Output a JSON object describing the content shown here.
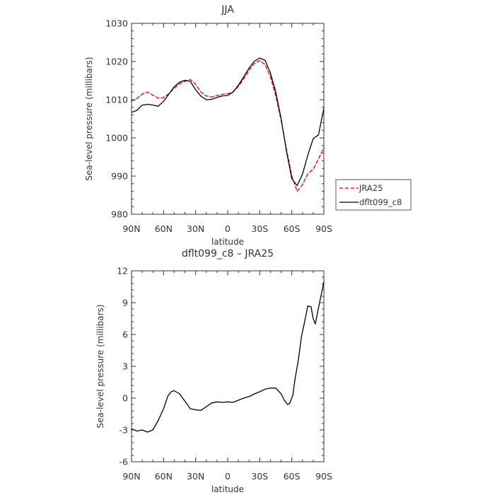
{
  "chart_data": [
    {
      "type": "line",
      "title": "JJA",
      "xlabel": "latitude",
      "ylabel": "Sea-level pressure (millibars)",
      "xlim": [
        90,
        -90
      ],
      "ylim": [
        980,
        1030
      ],
      "xtick_values": [
        90,
        60,
        30,
        0,
        -30,
        -60,
        -90
      ],
      "xtick_labels": [
        "90N",
        "60N",
        "30N",
        "0",
        "30S",
        "60S",
        "90S"
      ],
      "ytick_values": [
        980,
        990,
        1000,
        1010,
        1020,
        1030
      ],
      "ytick_labels": [
        "980",
        "990",
        "1000",
        "1010",
        "1020",
        "1030"
      ],
      "legend_position": "right",
      "series": [
        {
          "name": "JRA25",
          "color": "#e00000",
          "dash": "dashed",
          "points": [
            [
              90,
              1009.6
            ],
            [
              85,
              1010.3
            ],
            [
              80,
              1011.5
            ],
            [
              75,
              1012.0
            ],
            [
              70,
              1011.2
            ],
            [
              65,
              1010.4
            ],
            [
              60,
              1010.6
            ],
            [
              55,
              1011.6
            ],
            [
              50,
              1013.0
            ],
            [
              45,
              1014.2
            ],
            [
              40,
              1014.8
            ],
            [
              35,
              1015.3
            ],
            [
              30,
              1014.0
            ],
            [
              25,
              1012.0
            ],
            [
              20,
              1011.0
            ],
            [
              15,
              1010.7
            ],
            [
              10,
              1011.1
            ],
            [
              5,
              1011.4
            ],
            [
              0,
              1011.6
            ],
            [
              -5,
              1012.0
            ],
            [
              -10,
              1013.5
            ],
            [
              -15,
              1015.5
            ],
            [
              -20,
              1017.7
            ],
            [
              -25,
              1019.5
            ],
            [
              -30,
              1020.3
            ],
            [
              -35,
              1019.2
            ],
            [
              -40,
              1016.0
            ],
            [
              -45,
              1011.0
            ],
            [
              -50,
              1004.5
            ],
            [
              -55,
              997.0
            ],
            [
              -60,
              990.0
            ],
            [
              -65,
              986.0
            ],
            [
              -70,
              987.8
            ],
            [
              -75,
              990.6
            ],
            [
              -80,
              991.8
            ],
            [
              -85,
              994.5
            ],
            [
              -90,
              997.5
            ]
          ]
        },
        {
          "name": "dflt099_c8",
          "color": "#000000",
          "dash": "solid",
          "points": [
            [
              90,
              1006.7
            ],
            [
              85,
              1007.2
            ],
            [
              80,
              1008.6
            ],
            [
              75,
              1008.8
            ],
            [
              70,
              1008.6
            ],
            [
              65,
              1008.3
            ],
            [
              60,
              1009.6
            ],
            [
              55,
              1011.5
            ],
            [
              50,
              1013.4
            ],
            [
              45,
              1014.6
            ],
            [
              40,
              1015.1
            ],
            [
              35,
              1014.8
            ],
            [
              30,
              1012.6
            ],
            [
              25,
              1010.9
            ],
            [
              20,
              1010.0
            ],
            [
              15,
              1010.1
            ],
            [
              10,
              1010.6
            ],
            [
              5,
              1011.0
            ],
            [
              0,
              1011.1
            ],
            [
              -5,
              1012.0
            ],
            [
              -10,
              1013.8
            ],
            [
              -15,
              1016.0
            ],
            [
              -20,
              1018.3
            ],
            [
              -25,
              1020.1
            ],
            [
              -30,
              1020.9
            ],
            [
              -35,
              1020.3
            ],
            [
              -40,
              1017.0
            ],
            [
              -45,
              1012.0
            ],
            [
              -50,
              1005.0
            ],
            [
              -55,
              996.5
            ],
            [
              -60,
              989.3
            ],
            [
              -65,
              987.5
            ],
            [
              -70,
              990.5
            ],
            [
              -75,
              995.5
            ],
            [
              -80,
              999.8
            ],
            [
              -85,
              1000.8
            ],
            [
              -90,
              1007.8
            ]
          ]
        }
      ]
    },
    {
      "type": "line",
      "title": "dflt099_c8 – JRA25",
      "xlabel": "latitude",
      "ylabel": "Sea-level pressure (millibars)",
      "xlim": [
        90,
        -90
      ],
      "ylim": [
        -6,
        12
      ],
      "xtick_values": [
        90,
        60,
        30,
        0,
        -30,
        -60,
        -90
      ],
      "xtick_labels": [
        "90N",
        "60N",
        "30N",
        "0",
        "30S",
        "60S",
        "90S"
      ],
      "ytick_values": [
        -6,
        -3,
        0,
        3,
        6,
        9,
        12
      ],
      "ytick_labels": [
        "-6",
        "-3",
        "0",
        "3",
        "6",
        "9",
        "12"
      ],
      "series": [
        {
          "color": "#000000",
          "dash": "solid",
          "points": [
            [
              90,
              -2.9
            ],
            [
              85,
              -3.1
            ],
            [
              80,
              -3.0
            ],
            [
              75,
              -3.2
            ],
            [
              70,
              -3.0
            ],
            [
              65,
              -2.1
            ],
            [
              60,
              -1.0
            ],
            [
              56,
              0.2
            ],
            [
              53,
              0.6
            ],
            [
              50,
              0.7
            ],
            [
              45,
              0.4
            ],
            [
              40,
              -0.3
            ],
            [
              35,
              -1.0
            ],
            [
              30,
              -1.1
            ],
            [
              25,
              -1.15
            ],
            [
              20,
              -0.8
            ],
            [
              15,
              -0.45
            ],
            [
              10,
              -0.35
            ],
            [
              5,
              -0.4
            ],
            [
              0,
              -0.35
            ],
            [
              -5,
              -0.4
            ],
            [
              -10,
              -0.2
            ],
            [
              -15,
              0.0
            ],
            [
              -20,
              0.15
            ],
            [
              -25,
              0.4
            ],
            [
              -30,
              0.6
            ],
            [
              -35,
              0.85
            ],
            [
              -40,
              0.95
            ],
            [
              -45,
              0.95
            ],
            [
              -50,
              0.4
            ],
            [
              -53,
              -0.2
            ],
            [
              -56,
              -0.6
            ],
            [
              -58,
              -0.5
            ],
            [
              -61,
              0.3
            ],
            [
              -63,
              1.8
            ],
            [
              -66,
              3.5
            ],
            [
              -69,
              5.8
            ],
            [
              -72,
              7.2
            ],
            [
              -75,
              8.7
            ],
            [
              -78,
              8.6
            ],
            [
              -80,
              7.5
            ],
            [
              -82,
              7.0
            ],
            [
              -85,
              8.5
            ],
            [
              -88,
              10.0
            ],
            [
              -90,
              11.0
            ]
          ]
        }
      ]
    }
  ]
}
